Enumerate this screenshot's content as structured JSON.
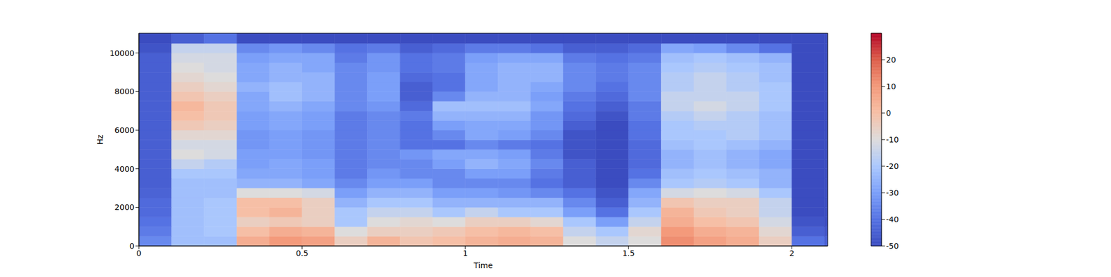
{
  "chart_data": {
    "type": "heatmap",
    "xlabel": "Time",
    "ylabel": "Hz",
    "xlim": [
      0,
      2.11
    ],
    "xticks": [
      0,
      0.5,
      1,
      1.5,
      2
    ],
    "ylim": [
      0,
      11025
    ],
    "yticks": [
      0,
      2000,
      4000,
      6000,
      8000,
      10000
    ],
    "x_bins": [
      0,
      0.1,
      0.2,
      0.3,
      0.4,
      0.5,
      0.6,
      0.7,
      0.8,
      0.9,
      1.0,
      1.1,
      1.2,
      1.3,
      1.4,
      1.5,
      1.6,
      1.7,
      1.8,
      1.9,
      2.0,
      2.1,
      2.11
    ],
    "y_bins": [
      0,
      500,
      1000,
      1500,
      2000,
      2500,
      3000,
      3500,
      4000,
      4500,
      5000,
      5500,
      6000,
      6500,
      7000,
      7500,
      8000,
      8500,
      9000,
      9500,
      10000,
      10500,
      11025
    ],
    "cells": [
      [
        -35,
        -22,
        -22,
        5,
        10,
        8,
        -5,
        3,
        -2,
        0,
        3,
        5,
        3,
        -10,
        -15,
        -10,
        12,
        8,
        5,
        -5,
        -40,
        -45
      ],
      [
        -38,
        -22,
        -20,
        0,
        5,
        3,
        -10,
        -5,
        -5,
        -3,
        0,
        2,
        0,
        -15,
        -20,
        -8,
        10,
        5,
        3,
        -8,
        -45,
        -48
      ],
      [
        -40,
        -22,
        -20,
        -5,
        -3,
        -5,
        -20,
        -10,
        -8,
        -10,
        -5,
        -5,
        -8,
        -20,
        -30,
        -15,
        5,
        0,
        -2,
        -12,
        -48,
        -50
      ],
      [
        -42,
        -22,
        -20,
        0,
        3,
        -5,
        -20,
        -15,
        -15,
        -20,
        -15,
        -20,
        -20,
        -30,
        -40,
        -20,
        3,
        -3,
        -5,
        -15,
        -50,
        -50
      ],
      [
        -42,
        -22,
        -20,
        0,
        0,
        -5,
        -25,
        -20,
        -20,
        -25,
        -25,
        -25,
        -25,
        -35,
        -45,
        -25,
        -2,
        -5,
        -5,
        -15,
        -50,
        -50
      ],
      [
        -44,
        -22,
        -22,
        -10,
        -10,
        -12,
        -30,
        -25,
        -25,
        -30,
        -30,
        -32,
        -35,
        -40,
        -48,
        -28,
        -12,
        -10,
        -12,
        -20,
        -50,
        -50
      ],
      [
        -45,
        -22,
        -22,
        -25,
        -25,
        -28,
        -35,
        -30,
        -30,
        -35,
        -35,
        -35,
        -40,
        -45,
        -50,
        -35,
        -20,
        -18,
        -20,
        -25,
        -50,
        -50
      ],
      [
        -45,
        -20,
        -20,
        -28,
        -28,
        -30,
        -38,
        -32,
        -35,
        -35,
        -30,
        -30,
        -38,
        -45,
        -50,
        -40,
        -22,
        -20,
        -22,
        -25,
        -50,
        -50
      ],
      [
        -45,
        -15,
        -18,
        -30,
        -28,
        -30,
        -38,
        -35,
        -35,
        -30,
        -25,
        -28,
        -35,
        -45,
        -50,
        -42,
        -25,
        -22,
        -25,
        -28,
        -50,
        -50
      ],
      [
        -45,
        -10,
        -12,
        -30,
        -30,
        -32,
        -38,
        -35,
        -32,
        -28,
        -28,
        -30,
        -38,
        -48,
        -50,
        -42,
        -25,
        -22,
        -25,
        -28,
        -50,
        -50
      ],
      [
        -45,
        -12,
        -12,
        -32,
        -30,
        -32,
        -38,
        -35,
        -40,
        -40,
        -35,
        -38,
        -40,
        -48,
        -50,
        -42,
        -22,
        -20,
        -22,
        -25,
        -50,
        -50
      ],
      [
        -45,
        -8,
        -8,
        -32,
        -30,
        -32,
        -38,
        -35,
        -40,
        -35,
        -28,
        -30,
        -35,
        -48,
        -50,
        -40,
        -20,
        -20,
        -18,
        -22,
        -50,
        -50
      ],
      [
        -45,
        -3,
        -5,
        -30,
        -28,
        -30,
        -38,
        -35,
        -40,
        -30,
        -28,
        -28,
        -32,
        -45,
        -50,
        -40,
        -20,
        -18,
        -18,
        -22,
        -50,
        -50
      ],
      [
        -45,
        0,
        -3,
        -30,
        -28,
        -30,
        -38,
        -35,
        -38,
        -25,
        -25,
        -25,
        -32,
        -42,
        -48,
        -38,
        -18,
        -15,
        -18,
        -22,
        -50,
        -50
      ],
      [
        -45,
        2,
        -3,
        -28,
        -25,
        -28,
        -35,
        -32,
        -42,
        -22,
        -22,
        -22,
        -28,
        -40,
        -45,
        -38,
        -15,
        -12,
        -15,
        -20,
        -50,
        -50
      ],
      [
        -45,
        -2,
        -5,
        -28,
        -22,
        -25,
        -35,
        -30,
        -45,
        -35,
        -25,
        -25,
        -30,
        -38,
        -42,
        -35,
        -15,
        -15,
        -15,
        -20,
        -50,
        -50
      ],
      [
        -45,
        -5,
        -8,
        -25,
        -22,
        -25,
        -35,
        -30,
        -45,
        -40,
        -28,
        -25,
        -28,
        -35,
        -40,
        -35,
        -18,
        -15,
        -18,
        -20,
        -50,
        -50
      ],
      [
        -45,
        -8,
        -10,
        -28,
        -25,
        -25,
        -35,
        -30,
        -42,
        -40,
        -28,
        -25,
        -25,
        -35,
        -38,
        -35,
        -18,
        -15,
        -18,
        -22,
        -50,
        -50
      ],
      [
        -45,
        -10,
        -12,
        -28,
        -25,
        -28,
        -35,
        -32,
        -40,
        -38,
        -28,
        -25,
        -25,
        -35,
        -38,
        -35,
        -20,
        -18,
        -20,
        -22,
        -50,
        -50
      ],
      [
        -45,
        -12,
        -12,
        -30,
        -28,
        -28,
        -38,
        -32,
        -40,
        -38,
        -30,
        -28,
        -28,
        -38,
        -40,
        -38,
        -22,
        -20,
        -22,
        -25,
        -50,
        -50
      ],
      [
        -48,
        -15,
        -15,
        -35,
        -32,
        -35,
        -40,
        -38,
        -45,
        -42,
        -38,
        -38,
        -40,
        -45,
        -45,
        -42,
        -28,
        -30,
        -35,
        -40,
        -50,
        -50
      ],
      [
        -50,
        -45,
        -40,
        -50,
        -50,
        -50,
        -50,
        -50,
        -50,
        -50,
        -50,
        -50,
        -50,
        -50,
        -50,
        -50,
        -50,
        -50,
        -50,
        -50,
        -50,
        -50
      ]
    ],
    "colorbar": {
      "range": [
        -50,
        30
      ],
      "ticks": [
        -50,
        -40,
        -30,
        -20,
        -10,
        0,
        10,
        20
      ]
    }
  }
}
